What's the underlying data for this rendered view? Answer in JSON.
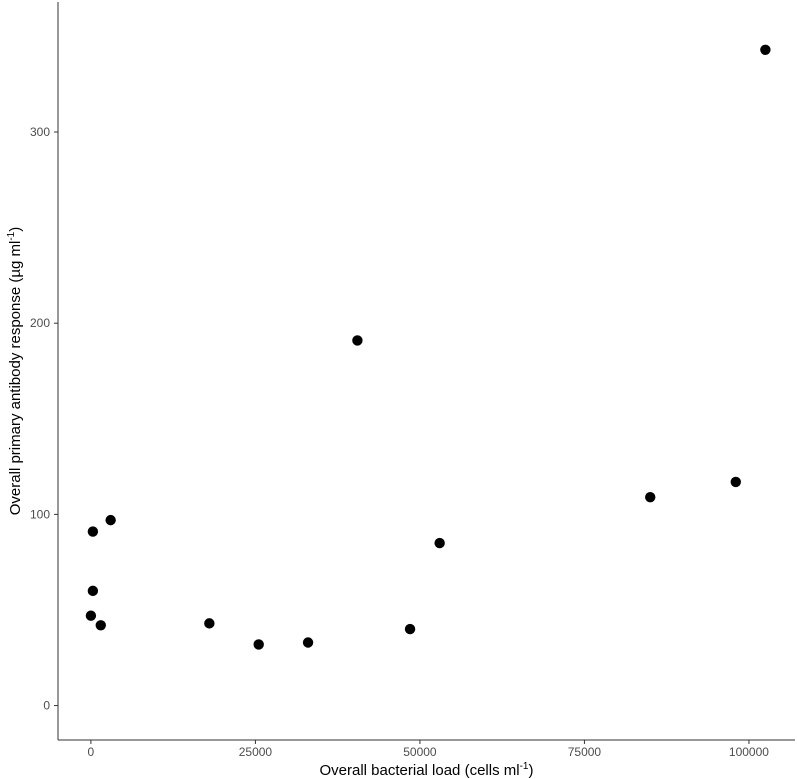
{
  "chart_data": {
    "type": "scatter",
    "title": "",
    "xlabel": "Overall bacterial load (cells ml⁻¹)",
    "xlabel_parts": {
      "text": "Overall bacterial load (cells ml",
      "sup": "-1",
      "tail": ")"
    },
    "ylabel": "Overall primary antibody response (µg ml⁻¹)",
    "ylabel_parts": {
      "text": "Overall primary antibody response (µg ml",
      "sup": "-1",
      "tail": ")"
    },
    "xlim": [
      -5000,
      107000
    ],
    "ylim": [
      -18,
      368
    ],
    "x_ticks": [
      0,
      25000,
      50000,
      75000,
      100000
    ],
    "y_ticks": [
      0,
      100,
      200,
      300
    ],
    "grid": false,
    "legend": "none",
    "point_color": "#000000",
    "points": [
      {
        "x": 300,
        "y": 91
      },
      {
        "x": 300,
        "y": 60
      },
      {
        "x": 0,
        "y": 47
      },
      {
        "x": 1500,
        "y": 42
      },
      {
        "x": 3000,
        "y": 97
      },
      {
        "x": 18000,
        "y": 43
      },
      {
        "x": 25500,
        "y": 32
      },
      {
        "x": 33000,
        "y": 33
      },
      {
        "x": 40500,
        "y": 191
      },
      {
        "x": 48500,
        "y": 40
      },
      {
        "x": 53000,
        "y": 85
      },
      {
        "x": 85000,
        "y": 109
      },
      {
        "x": 98000,
        "y": 117
      },
      {
        "x": 102500,
        "y": 343
      }
    ]
  }
}
